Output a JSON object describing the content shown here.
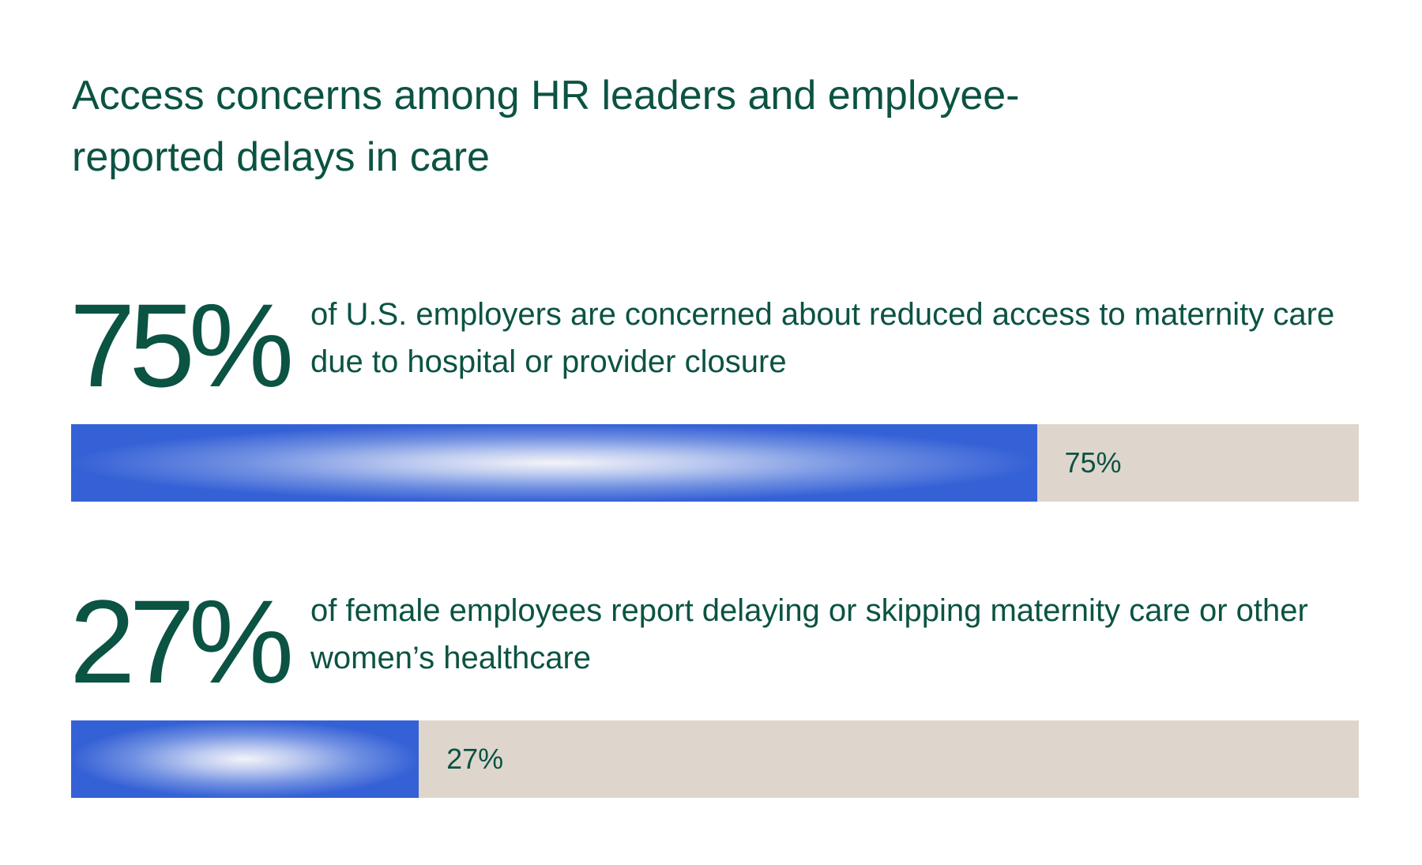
{
  "title": "Access concerns among HR leaders and employee-reported delays in care",
  "colors": {
    "text": "#0b5343",
    "bar_fill": "#3561d6",
    "bar_track": "#ded6cd"
  },
  "chart_data": {
    "type": "bar",
    "orientation": "horizontal",
    "title": "Access concerns among HR leaders and employee-reported delays in care",
    "xlim": [
      0,
      100
    ],
    "grid": false,
    "legend": "none",
    "categories": [
      "of U.S. employers are concerned about reduced access to maternity care due to hospital or provider closure",
      "of female employees report delaying or skipping maternity care or other women’s healthcare"
    ],
    "values": [
      75,
      27
    ],
    "big_labels": [
      "75%",
      "27%"
    ],
    "bar_labels": [
      "75%",
      "27%"
    ]
  }
}
